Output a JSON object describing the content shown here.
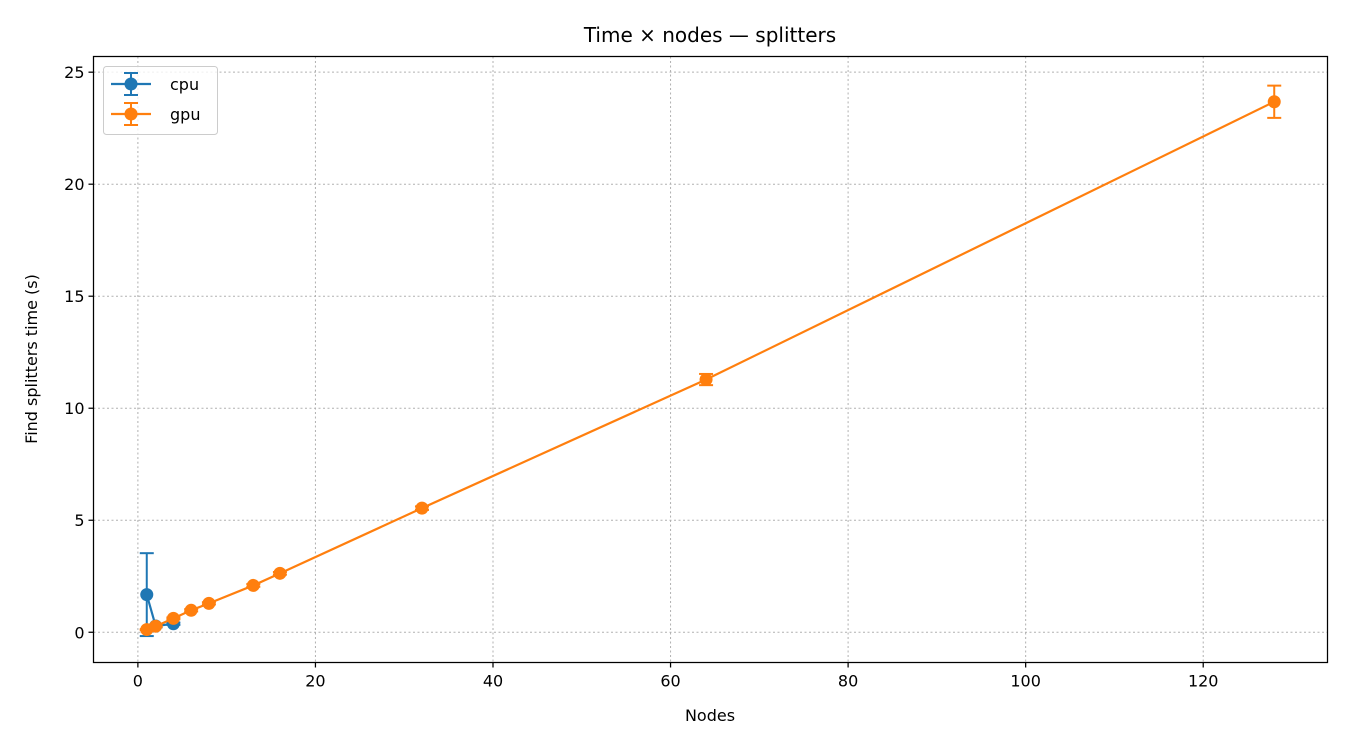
{
  "chart_data": {
    "type": "line",
    "title": "Time × nodes — splitters",
    "xlabel": "Nodes",
    "ylabel": "Find splitters time (s)",
    "xlim": [
      -5,
      134
    ],
    "ylim": [
      -1.35,
      25.7
    ],
    "xticks": [
      0,
      20,
      40,
      60,
      80,
      100,
      120
    ],
    "yticks": [
      0,
      5,
      10,
      15,
      20,
      25
    ],
    "grid": true,
    "legend_position": "top-left",
    "error_bars": true,
    "series": [
      {
        "name": "cpu",
        "color": "#1f77b4",
        "points": [
          {
            "x": 1,
            "y": 1.68,
            "err": 1.85
          },
          {
            "x": 2,
            "y": 0.28,
            "err": 0.06
          },
          {
            "x": 4,
            "y": 0.38,
            "err": 0.05
          }
        ]
      },
      {
        "name": "gpu",
        "color": "#ff7f0e",
        "points": [
          {
            "x": 1,
            "y": 0.12,
            "err": 0.02
          },
          {
            "x": 2,
            "y": 0.27,
            "err": 0.03
          },
          {
            "x": 4,
            "y": 0.62,
            "err": 0.04
          },
          {
            "x": 6,
            "y": 0.98,
            "err": 0.05
          },
          {
            "x": 8,
            "y": 1.29,
            "err": 0.05
          },
          {
            "x": 13,
            "y": 2.09,
            "err": 0.06
          },
          {
            "x": 16,
            "y": 2.63,
            "err": 0.06
          },
          {
            "x": 32,
            "y": 5.54,
            "err": 0.08
          },
          {
            "x": 64,
            "y": 11.28,
            "err": 0.25
          },
          {
            "x": 128,
            "y": 23.68,
            "err": 0.72
          }
        ]
      }
    ]
  }
}
